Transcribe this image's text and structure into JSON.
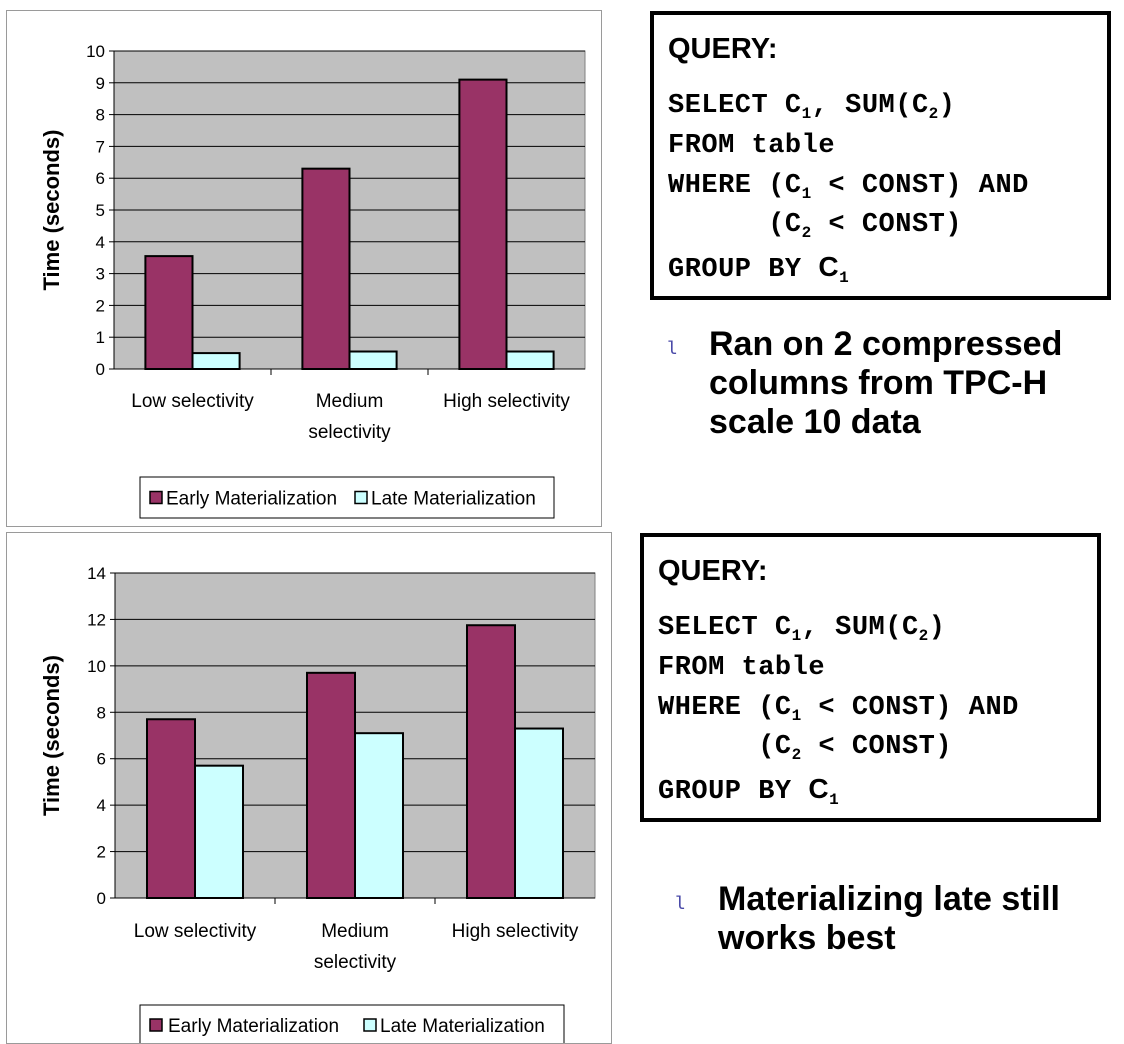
{
  "chart_data": [
    {
      "type": "bar",
      "categories": [
        [
          "Low selectivity"
        ],
        [
          "Medium",
          "selectivity"
        ],
        [
          "High selectivity"
        ]
      ],
      "series": [
        {
          "name": "Early Materialization",
          "values": [
            3.55,
            6.3,
            9.1
          ]
        },
        {
          "name": "Late Materialization",
          "values": [
            0.5,
            0.55,
            0.55
          ]
        }
      ],
      "ylabel": "Time (seconds)",
      "ylim": [
        0,
        10
      ],
      "yticks": [
        0,
        1,
        2,
        3,
        4,
        5,
        6,
        7,
        8,
        9,
        10
      ],
      "grid": true,
      "legend": "bottom"
    },
    {
      "type": "bar",
      "categories": [
        [
          "Low selectivity"
        ],
        [
          "Medium",
          "selectivity"
        ],
        [
          "High selectivity"
        ]
      ],
      "series": [
        {
          "name": "Early Materialization",
          "values": [
            7.7,
            9.7,
            11.75
          ]
        },
        {
          "name": "Late Materialization",
          "values": [
            5.7,
            7.1,
            7.3
          ]
        }
      ],
      "ylabel": "Time (seconds)",
      "ylim": [
        0,
        14
      ],
      "yticks": [
        0,
        2,
        4,
        6,
        8,
        10,
        12,
        14
      ],
      "grid": true,
      "legend": "bottom"
    }
  ],
  "colors": {
    "early": "#993366",
    "late": "#ccffff",
    "plot_bg": "#c0c0c0",
    "bullet": "#4a4aa8"
  },
  "queries": [
    {
      "title": "QUERY:",
      "select_kw": "SELECT C",
      "select_sub1": "1",
      "select_mid": ", SUM(C",
      "select_sub2": "2",
      "select_end": ")",
      "from_line": "FROM table",
      "where_kw": "WHERE (C",
      "where_sub1": "1",
      "where_end": " < CONST) AND",
      "where2_kw": "      (C",
      "where2_sub": "2",
      "where2_end": " < CONST)",
      "group_kw": "GROUP BY ",
      "group_col": "C",
      "group_sub": "1"
    },
    {
      "title": "QUERY:",
      "select_kw": "SELECT C",
      "select_sub1": "1",
      "select_mid": ", SUM(C",
      "select_sub2": "2",
      "select_end": ")",
      "from_line": "FROM table",
      "where_kw": "WHERE (C",
      "where_sub1": "1",
      "where_end": " < CONST) AND",
      "where2_kw": "      (C",
      "where2_sub": "2",
      "where2_end": " < CONST)",
      "group_kw": "GROUP BY ",
      "group_col": "C",
      "group_sub": "1"
    }
  ],
  "bullets": [
    {
      "mark": "l",
      "lines": [
        "Ran on 2 compressed",
        "columns from TPC-H",
        "scale 10 data"
      ]
    },
    {
      "mark": "l",
      "lines": [
        "Materializing late still",
        "works best"
      ]
    }
  ]
}
